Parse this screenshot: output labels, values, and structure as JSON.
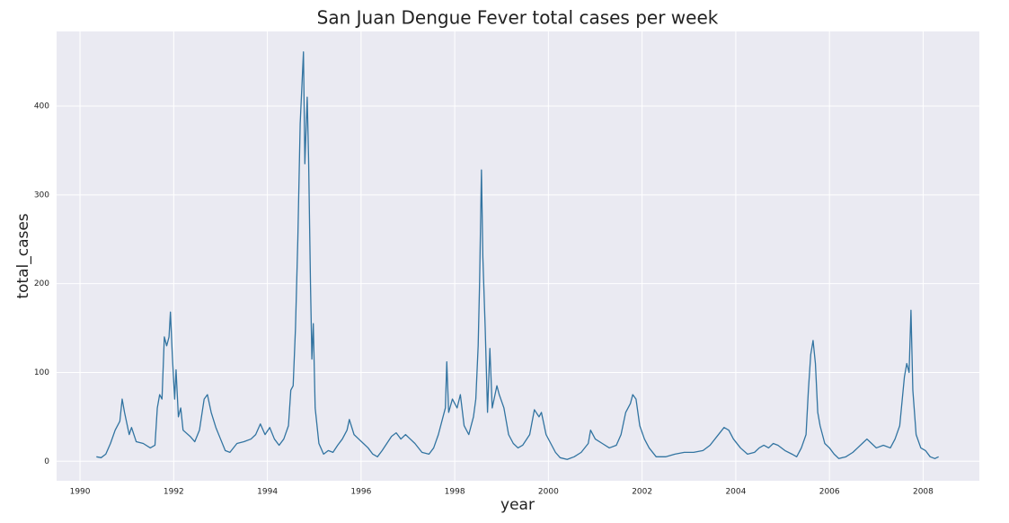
{
  "chart_data": {
    "type": "line",
    "title": "San Juan Dengue Fever total cases per week",
    "x_label": "year",
    "y_label": "total_cases",
    "xlim": [
      1989.5,
      2009.2
    ],
    "xticks": [
      1990,
      1992,
      1994,
      1996,
      1998,
      2000,
      2002,
      2004,
      2006,
      2008
    ],
    "ylim": [
      -22,
      484
    ],
    "yticks": [
      0,
      100,
      200,
      300,
      400
    ],
    "grid": true,
    "series": [
      {
        "name": "total_cases",
        "color": "#3274a1",
        "x": [
          1990.35,
          1990.45,
          1990.55,
          1990.65,
          1990.75,
          1990.85,
          1990.9,
          1990.95,
          1991.05,
          1991.1,
          1991.2,
          1991.35,
          1991.5,
          1991.6,
          1991.65,
          1991.7,
          1991.75,
          1991.8,
          1991.85,
          1991.9,
          1991.93,
          1991.97,
          1992.02,
          1992.05,
          1992.1,
          1992.15,
          1992.2,
          1992.35,
          1992.45,
          1992.55,
          1992.65,
          1992.72,
          1992.8,
          1992.9,
          1993.0,
          1993.1,
          1993.2,
          1993.35,
          1993.5,
          1993.65,
          1993.75,
          1993.85,
          1993.95,
          1994.05,
          1994.15,
          1994.25,
          1994.35,
          1994.45,
          1994.5,
          1994.55,
          1994.6,
          1994.65,
          1994.7,
          1994.77,
          1994.8,
          1994.85,
          1994.88,
          1994.92,
          1994.95,
          1994.98,
          1995.02,
          1995.1,
          1995.2,
          1995.3,
          1995.4,
          1995.5,
          1995.6,
          1995.7,
          1995.75,
          1995.85,
          1995.95,
          1996.05,
          1996.15,
          1996.25,
          1996.35,
          1996.45,
          1996.55,
          1996.65,
          1996.75,
          1996.85,
          1996.95,
          1997.05,
          1997.15,
          1997.3,
          1997.45,
          1997.55,
          1997.65,
          1997.75,
          1997.8,
          1997.83,
          1997.87,
          1997.95,
          1998.05,
          1998.12,
          1998.2,
          1998.3,
          1998.4,
          1998.45,
          1998.5,
          1998.53,
          1998.57,
          1998.6,
          1998.65,
          1998.7,
          1998.75,
          1998.8,
          1998.9,
          1998.95,
          1999.05,
          1999.15,
          1999.25,
          1999.35,
          1999.45,
          1999.6,
          1999.7,
          1999.8,
          1999.85,
          1999.95,
          2000.05,
          2000.15,
          2000.25,
          2000.4,
          2000.55,
          2000.7,
          2000.85,
          2000.9,
          2001.0,
          2001.15,
          2001.3,
          2001.45,
          2001.55,
          2001.65,
          2001.75,
          2001.8,
          2001.87,
          2001.95,
          2002.05,
          2002.15,
          2002.3,
          2002.5,
          2002.7,
          2002.9,
          2003.1,
          2003.3,
          2003.45,
          2003.6,
          2003.75,
          2003.85,
          2003.95,
          2004.1,
          2004.25,
          2004.4,
          2004.5,
          2004.6,
          2004.7,
          2004.8,
          2004.9,
          2005.05,
          2005.2,
          2005.3,
          2005.4,
          2005.5,
          2005.55,
          2005.6,
          2005.65,
          2005.7,
          2005.75,
          2005.8,
          2005.9,
          2006.0,
          2006.1,
          2006.2,
          2006.35,
          2006.5,
          2006.6,
          2006.7,
          2006.8,
          2006.9,
          2007.0,
          2007.15,
          2007.3,
          2007.4,
          2007.5,
          2007.6,
          2007.65,
          2007.7,
          2007.74,
          2007.78,
          2007.85,
          2007.95,
          2008.05,
          2008.15,
          2008.25,
          2008.33
        ],
        "values": [
          5,
          4,
          8,
          20,
          35,
          45,
          70,
          55,
          30,
          38,
          22,
          20,
          15,
          18,
          60,
          75,
          70,
          140,
          130,
          140,
          168,
          120,
          70,
          103,
          50,
          60,
          35,
          28,
          22,
          35,
          70,
          75,
          55,
          38,
          25,
          12,
          10,
          20,
          22,
          25,
          30,
          42,
          30,
          38,
          25,
          18,
          25,
          40,
          80,
          85,
          150,
          250,
          380,
          461,
          335,
          410,
          340,
          200,
          115,
          155,
          60,
          20,
          8,
          12,
          10,
          18,
          25,
          35,
          47,
          30,
          25,
          20,
          15,
          8,
          5,
          12,
          20,
          28,
          32,
          25,
          30,
          25,
          20,
          10,
          8,
          15,
          30,
          50,
          60,
          112,
          55,
          70,
          60,
          75,
          40,
          30,
          50,
          70,
          130,
          200,
          328,
          230,
          150,
          55,
          127,
          60,
          85,
          75,
          60,
          30,
          20,
          15,
          18,
          30,
          58,
          50,
          55,
          30,
          20,
          10,
          4,
          2,
          5,
          10,
          20,
          35,
          25,
          20,
          15,
          18,
          30,
          55,
          65,
          75,
          70,
          40,
          25,
          15,
          5,
          5,
          8,
          10,
          10,
          12,
          18,
          28,
          38,
          35,
          25,
          15,
          8,
          10,
          15,
          18,
          15,
          20,
          18,
          12,
          8,
          5,
          15,
          30,
          80,
          120,
          136,
          110,
          55,
          40,
          20,
          15,
          8,
          3,
          5,
          10,
          15,
          20,
          25,
          20,
          15,
          18,
          15,
          25,
          40,
          95,
          110,
          100,
          170,
          80,
          30,
          15,
          12,
          5,
          3,
          5
        ]
      }
    ]
  }
}
